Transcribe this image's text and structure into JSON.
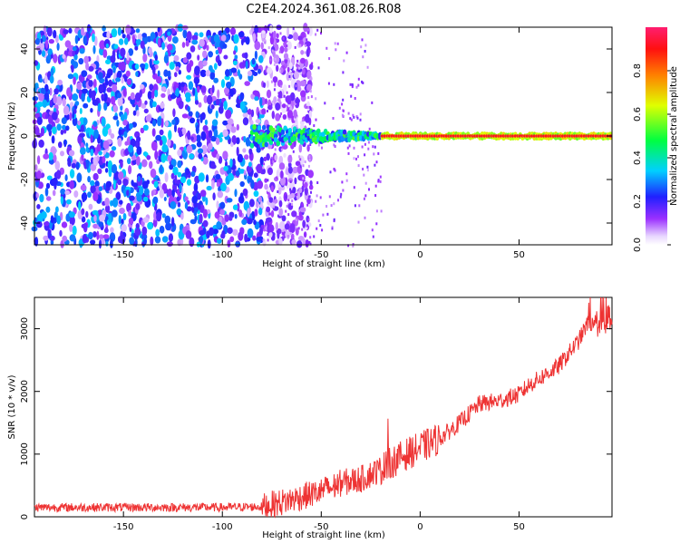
{
  "title": "C2E4.2024.361.08.26.R08",
  "chart_data": [
    {
      "type": "heatmap",
      "xlabel": "Height of straight line (km)",
      "ylabel": "Frequency (Hz)",
      "xlim": [
        -195,
        97
      ],
      "ylim": [
        -50,
        50
      ],
      "xticks": [
        -150,
        -100,
        -50,
        0,
        50
      ],
      "yticks": [
        -40,
        -20,
        0,
        20,
        40
      ],
      "colorbar": {
        "label": "Normalized spectral amplitude",
        "range": [
          0.0,
          1.0
        ],
        "ticks": [
          0.0,
          0.2,
          0.4,
          0.6,
          0.8
        ],
        "colormap": "rainbow (violet → blue → cyan → green → yellow → orange → red → magenta)"
      },
      "description_points": {
        "noise_region_x": [
          -195,
          -80
        ],
        "noise_amplitude": [
          0.2,
          0.35
        ],
        "transition_x": [
          -80,
          -20
        ],
        "signal_center_freq_hz": 0,
        "signal_band_x": [
          -20,
          97
        ],
        "signal_amplitude": [
          0.9,
          1.0
        ]
      },
      "grid": false
    },
    {
      "type": "line",
      "xlabel": "Height of straight line (km)",
      "ylabel": "SNR (10 * v/v)",
      "xlim": [
        -195,
        97
      ],
      "ylim": [
        0,
        3500
      ],
      "xticks": [
        -150,
        -100,
        -50,
        0,
        50
      ],
      "yticks": [
        0,
        1000,
        2000,
        3000
      ],
      "series": [
        {
          "color": "#ee3333",
          "x": [
            -195,
            -150,
            -100,
            -80,
            -70,
            -60,
            -50,
            -40,
            -30,
            -20,
            -10,
            0,
            10,
            20,
            30,
            40,
            50,
            55,
            60,
            70,
            80,
            85,
            90,
            95
          ],
          "y": [
            150,
            150,
            150,
            160,
            230,
            320,
            400,
            540,
            600,
            760,
            950,
            1100,
            1250,
            1500,
            1800,
            1850,
            1950,
            2100,
            2200,
            2400,
            2800,
            3100,
            3000,
            3050
          ]
        }
      ],
      "grid": false
    }
  ]
}
